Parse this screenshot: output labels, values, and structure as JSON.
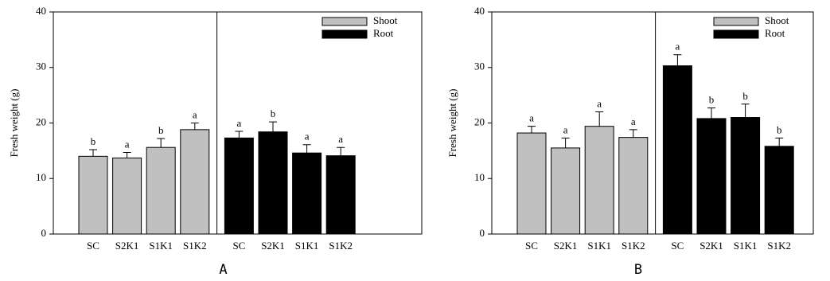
{
  "chart_data": [
    {
      "type": "bar",
      "panel_label": "A",
      "ylabel": "Fresh weight (g)",
      "categories": [
        "SC",
        "S2K1",
        "S1K1",
        "S1K2",
        "SC",
        "S2K1",
        "S1K1",
        "S1K2"
      ],
      "series": [
        {
          "name": "Shoot",
          "color": "#c0c0c0",
          "values": [
            14.0,
            13.7,
            15.6,
            18.8,
            null,
            null,
            null,
            null
          ],
          "errors": [
            1.2,
            1.0,
            1.6,
            1.2,
            null,
            null,
            null,
            null
          ],
          "annotations": [
            "b",
            "a",
            "b",
            "a",
            null,
            null,
            null,
            null
          ]
        },
        {
          "name": "Root",
          "color": "#000000",
          "values": [
            null,
            null,
            null,
            null,
            17.3,
            18.4,
            14.6,
            14.1
          ],
          "errors": [
            null,
            null,
            null,
            null,
            1.2,
            1.8,
            1.5,
            1.5
          ],
          "annotations": [
            null,
            null,
            null,
            null,
            "a",
            "b",
            "a",
            "a"
          ]
        }
      ],
      "ylim": [
        0,
        40
      ],
      "yticks": [
        0,
        10,
        20,
        30,
        40
      ],
      "legend": "upper right"
    },
    {
      "type": "bar",
      "panel_label": "B",
      "ylabel": "Fresh weight (g)",
      "categories": [
        "SC",
        "S2K1",
        "S1K1",
        "S1K2",
        "SC",
        "S2K1",
        "S1K1",
        "S1K2"
      ],
      "series": [
        {
          "name": "Shoot",
          "color": "#c0c0c0",
          "values": [
            18.2,
            15.5,
            19.4,
            17.4,
            null,
            null,
            null,
            null
          ],
          "errors": [
            1.2,
            1.8,
            2.6,
            1.4,
            null,
            null,
            null,
            null
          ],
          "annotations": [
            "a",
            "a",
            "a",
            "a",
            null,
            null,
            null,
            null
          ]
        },
        {
          "name": "Root",
          "color": "#000000",
          "values": [
            null,
            null,
            null,
            null,
            30.3,
            20.8,
            21.0,
            15.8
          ],
          "errors": [
            null,
            null,
            null,
            null,
            2.0,
            1.9,
            2.4,
            1.5
          ],
          "annotations": [
            null,
            null,
            null,
            null,
            "a",
            "b",
            "b",
            "b"
          ]
        }
      ],
      "ylim": [
        0,
        40
      ],
      "yticks": [
        0,
        10,
        20,
        30,
        40
      ],
      "legend": "upper right"
    }
  ]
}
